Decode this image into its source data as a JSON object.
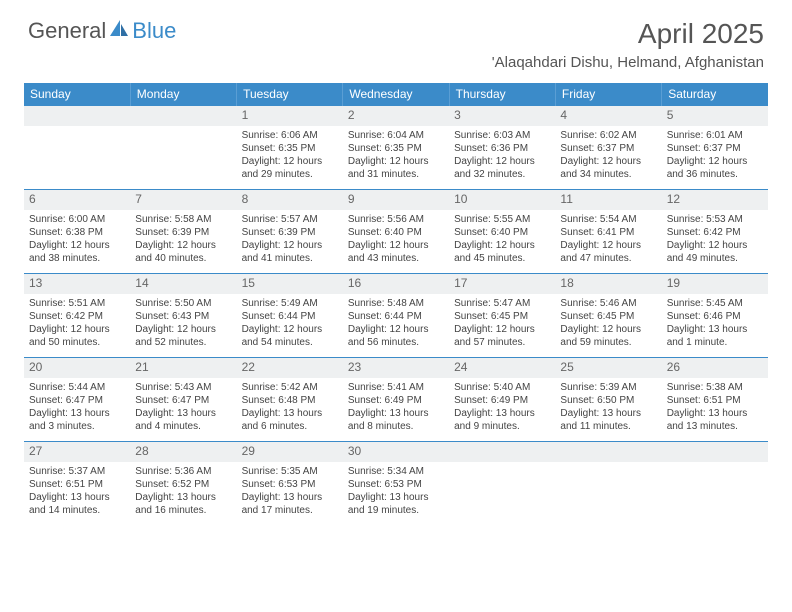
{
  "logo": {
    "part1": "General",
    "part2": "Blue",
    "part1_color": "#777",
    "part2_color": "#3b8bc9"
  },
  "title": "April 2025",
  "location": "'Alaqahdari Dishu, Helmand, Afghanistan",
  "day_headers": [
    "Sunday",
    "Monday",
    "Tuesday",
    "Wednesday",
    "Thursday",
    "Friday",
    "Saturday"
  ],
  "header_bg": "#3b8bc9",
  "header_text_color": "#ffffff",
  "daynum_bg": "#eef0f1",
  "grid_line_color": "#3b8bc9",
  "weeks": [
    [
      {
        "n": "",
        "lines": []
      },
      {
        "n": "",
        "lines": []
      },
      {
        "n": "1",
        "lines": [
          "Sunrise: 6:06 AM",
          "Sunset: 6:35 PM",
          "Daylight: 12 hours",
          "and 29 minutes."
        ]
      },
      {
        "n": "2",
        "lines": [
          "Sunrise: 6:04 AM",
          "Sunset: 6:35 PM",
          "Daylight: 12 hours",
          "and 31 minutes."
        ]
      },
      {
        "n": "3",
        "lines": [
          "Sunrise: 6:03 AM",
          "Sunset: 6:36 PM",
          "Daylight: 12 hours",
          "and 32 minutes."
        ]
      },
      {
        "n": "4",
        "lines": [
          "Sunrise: 6:02 AM",
          "Sunset: 6:37 PM",
          "Daylight: 12 hours",
          "and 34 minutes."
        ]
      },
      {
        "n": "5",
        "lines": [
          "Sunrise: 6:01 AM",
          "Sunset: 6:37 PM",
          "Daylight: 12 hours",
          "and 36 minutes."
        ]
      }
    ],
    [
      {
        "n": "6",
        "lines": [
          "Sunrise: 6:00 AM",
          "Sunset: 6:38 PM",
          "Daylight: 12 hours",
          "and 38 minutes."
        ]
      },
      {
        "n": "7",
        "lines": [
          "Sunrise: 5:58 AM",
          "Sunset: 6:39 PM",
          "Daylight: 12 hours",
          "and 40 minutes."
        ]
      },
      {
        "n": "8",
        "lines": [
          "Sunrise: 5:57 AM",
          "Sunset: 6:39 PM",
          "Daylight: 12 hours",
          "and 41 minutes."
        ]
      },
      {
        "n": "9",
        "lines": [
          "Sunrise: 5:56 AM",
          "Sunset: 6:40 PM",
          "Daylight: 12 hours",
          "and 43 minutes."
        ]
      },
      {
        "n": "10",
        "lines": [
          "Sunrise: 5:55 AM",
          "Sunset: 6:40 PM",
          "Daylight: 12 hours",
          "and 45 minutes."
        ]
      },
      {
        "n": "11",
        "lines": [
          "Sunrise: 5:54 AM",
          "Sunset: 6:41 PM",
          "Daylight: 12 hours",
          "and 47 minutes."
        ]
      },
      {
        "n": "12",
        "lines": [
          "Sunrise: 5:53 AM",
          "Sunset: 6:42 PM",
          "Daylight: 12 hours",
          "and 49 minutes."
        ]
      }
    ],
    [
      {
        "n": "13",
        "lines": [
          "Sunrise: 5:51 AM",
          "Sunset: 6:42 PM",
          "Daylight: 12 hours",
          "and 50 minutes."
        ]
      },
      {
        "n": "14",
        "lines": [
          "Sunrise: 5:50 AM",
          "Sunset: 6:43 PM",
          "Daylight: 12 hours",
          "and 52 minutes."
        ]
      },
      {
        "n": "15",
        "lines": [
          "Sunrise: 5:49 AM",
          "Sunset: 6:44 PM",
          "Daylight: 12 hours",
          "and 54 minutes."
        ]
      },
      {
        "n": "16",
        "lines": [
          "Sunrise: 5:48 AM",
          "Sunset: 6:44 PM",
          "Daylight: 12 hours",
          "and 56 minutes."
        ]
      },
      {
        "n": "17",
        "lines": [
          "Sunrise: 5:47 AM",
          "Sunset: 6:45 PM",
          "Daylight: 12 hours",
          "and 57 minutes."
        ]
      },
      {
        "n": "18",
        "lines": [
          "Sunrise: 5:46 AM",
          "Sunset: 6:45 PM",
          "Daylight: 12 hours",
          "and 59 minutes."
        ]
      },
      {
        "n": "19",
        "lines": [
          "Sunrise: 5:45 AM",
          "Sunset: 6:46 PM",
          "Daylight: 13 hours",
          "and 1 minute."
        ]
      }
    ],
    [
      {
        "n": "20",
        "lines": [
          "Sunrise: 5:44 AM",
          "Sunset: 6:47 PM",
          "Daylight: 13 hours",
          "and 3 minutes."
        ]
      },
      {
        "n": "21",
        "lines": [
          "Sunrise: 5:43 AM",
          "Sunset: 6:47 PM",
          "Daylight: 13 hours",
          "and 4 minutes."
        ]
      },
      {
        "n": "22",
        "lines": [
          "Sunrise: 5:42 AM",
          "Sunset: 6:48 PM",
          "Daylight: 13 hours",
          "and 6 minutes."
        ]
      },
      {
        "n": "23",
        "lines": [
          "Sunrise: 5:41 AM",
          "Sunset: 6:49 PM",
          "Daylight: 13 hours",
          "and 8 minutes."
        ]
      },
      {
        "n": "24",
        "lines": [
          "Sunrise: 5:40 AM",
          "Sunset: 6:49 PM",
          "Daylight: 13 hours",
          "and 9 minutes."
        ]
      },
      {
        "n": "25",
        "lines": [
          "Sunrise: 5:39 AM",
          "Sunset: 6:50 PM",
          "Daylight: 13 hours",
          "and 11 minutes."
        ]
      },
      {
        "n": "26",
        "lines": [
          "Sunrise: 5:38 AM",
          "Sunset: 6:51 PM",
          "Daylight: 13 hours",
          "and 13 minutes."
        ]
      }
    ],
    [
      {
        "n": "27",
        "lines": [
          "Sunrise: 5:37 AM",
          "Sunset: 6:51 PM",
          "Daylight: 13 hours",
          "and 14 minutes."
        ]
      },
      {
        "n": "28",
        "lines": [
          "Sunrise: 5:36 AM",
          "Sunset: 6:52 PM",
          "Daylight: 13 hours",
          "and 16 minutes."
        ]
      },
      {
        "n": "29",
        "lines": [
          "Sunrise: 5:35 AM",
          "Sunset: 6:53 PM",
          "Daylight: 13 hours",
          "and 17 minutes."
        ]
      },
      {
        "n": "30",
        "lines": [
          "Sunrise: 5:34 AM",
          "Sunset: 6:53 PM",
          "Daylight: 13 hours",
          "and 19 minutes."
        ]
      },
      {
        "n": "",
        "lines": []
      },
      {
        "n": "",
        "lines": []
      },
      {
        "n": "",
        "lines": []
      }
    ]
  ]
}
